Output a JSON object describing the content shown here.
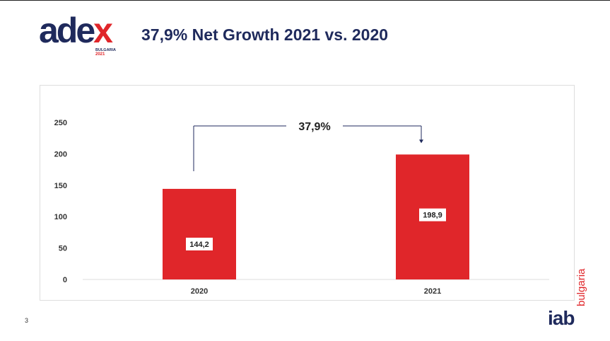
{
  "logo": {
    "text_main": "ade",
    "text_x": "x",
    "sub": "BULGARIA",
    "year": "2021"
  },
  "title": "37,9% Net Growth 2021 vs. 2020",
  "page_number": "3",
  "iab": {
    "word": "iab",
    "country": "bulgaria"
  },
  "colors": {
    "bar": "#e0262a",
    "navy": "#1f2a5c",
    "arrow": "#1f2a5c"
  },
  "chart_data": {
    "type": "bar",
    "categories": [
      "2020",
      "2021"
    ],
    "values": [
      144.2,
      198.9
    ],
    "value_labels": [
      "144,2",
      "198,9"
    ],
    "y_ticks": [
      "0",
      "50",
      "100",
      "150",
      "200",
      "250"
    ],
    "ylim": [
      0,
      250
    ],
    "title": "",
    "xlabel": "",
    "ylabel": "",
    "annotation": "37,9%",
    "grid": false
  }
}
